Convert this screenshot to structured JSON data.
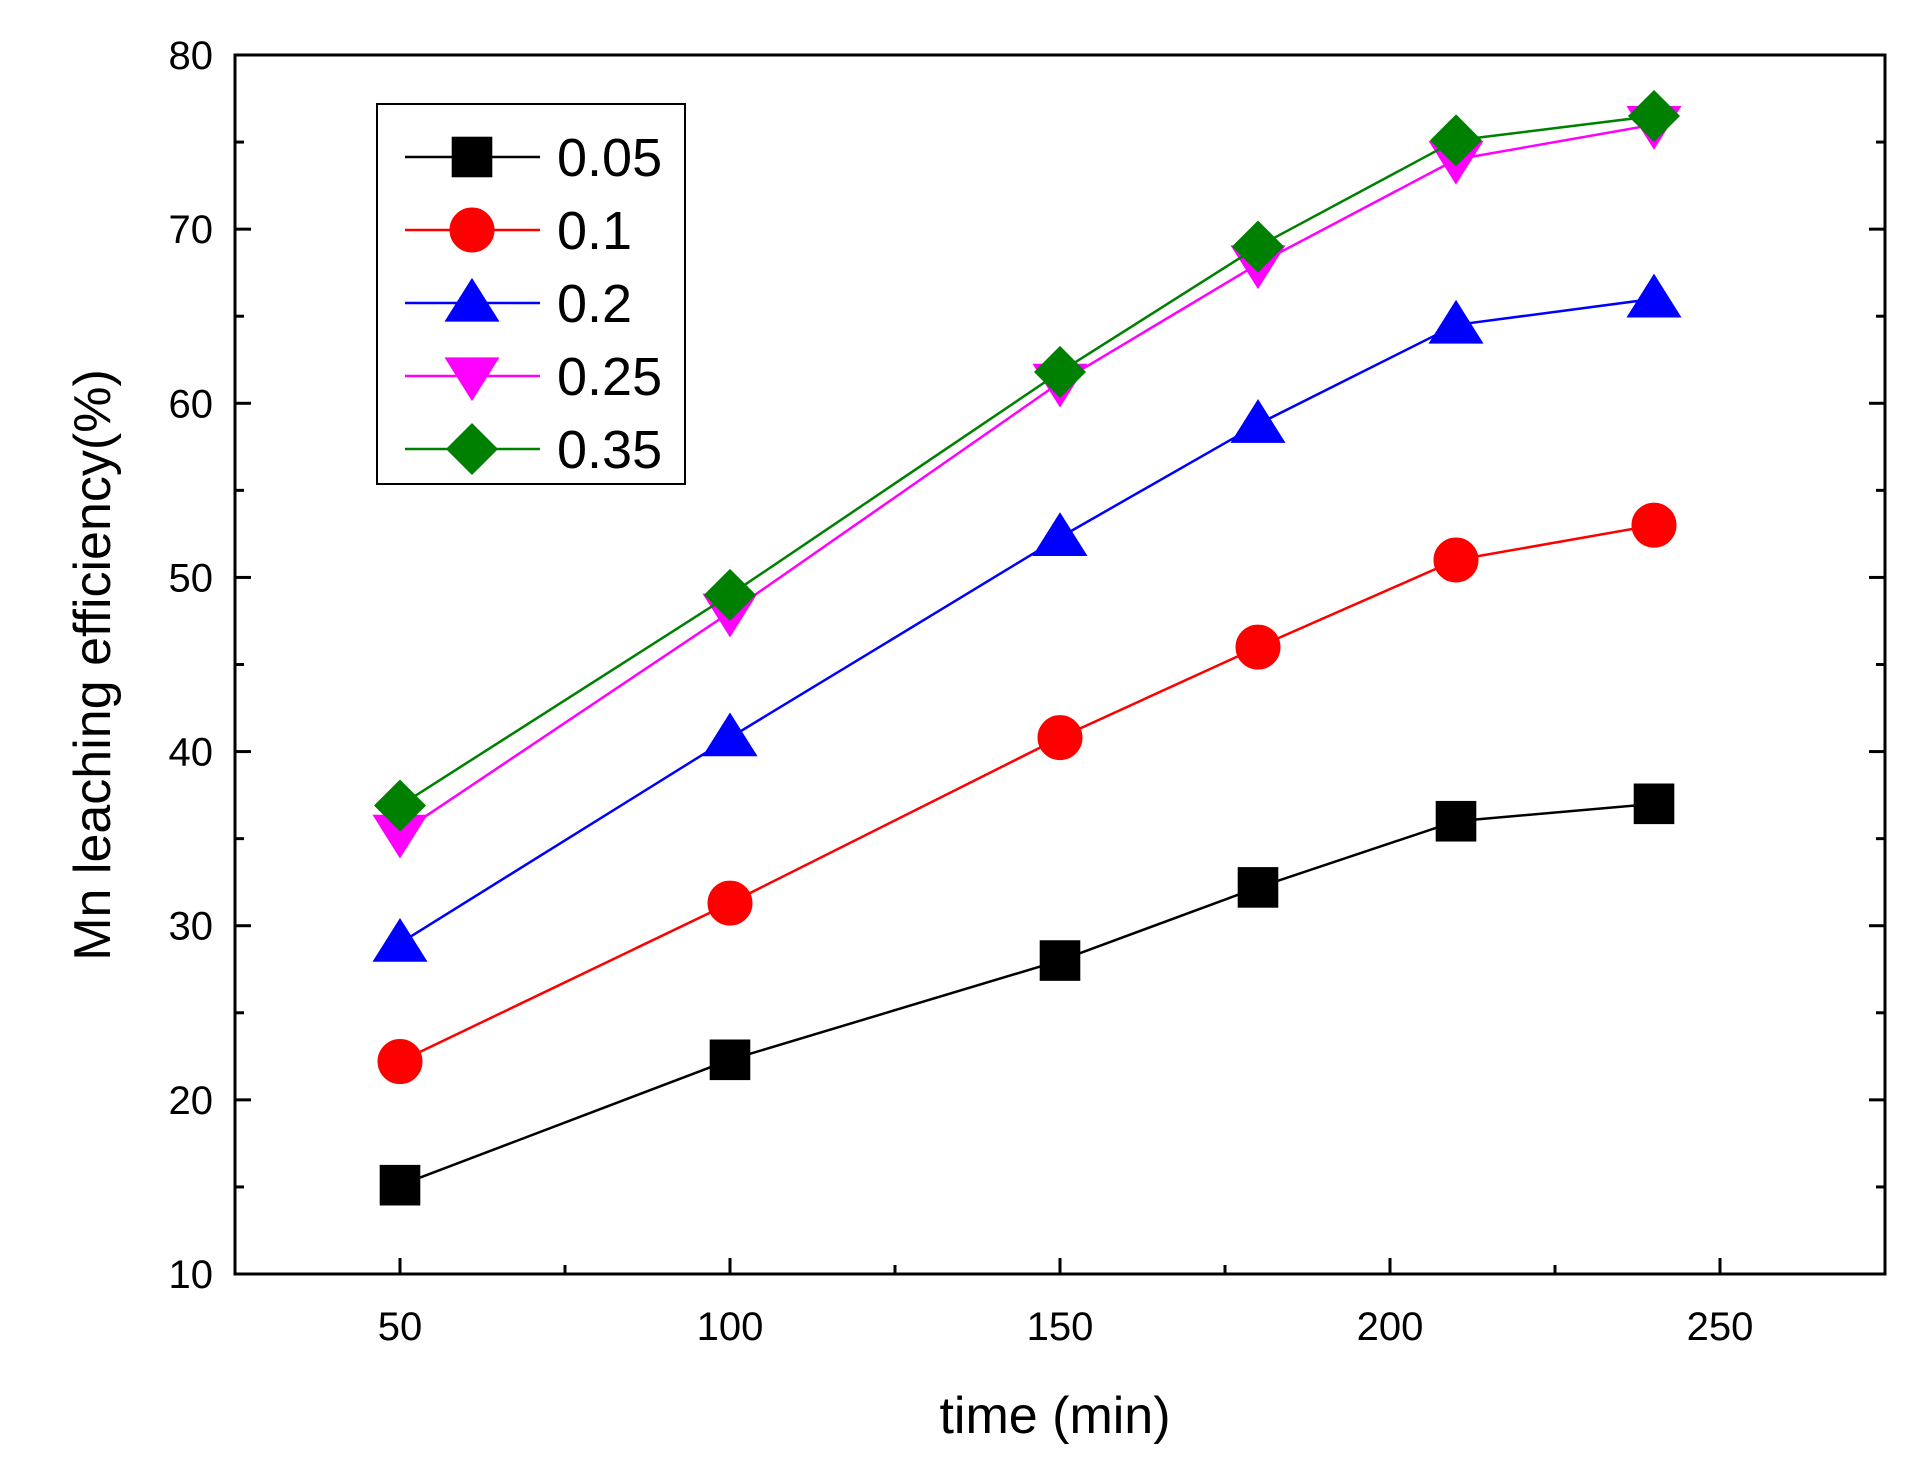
{
  "chart_data": {
    "type": "line",
    "title": "",
    "xlabel": "time (min)",
    "ylabel": "Mn leaching efficiency(%)",
    "xlim": [
      25,
      275
    ],
    "ylim": [
      10,
      80
    ],
    "xticks": [
      50,
      100,
      150,
      200,
      250
    ],
    "yticks": [
      10,
      20,
      30,
      40,
      50,
      60,
      70,
      80
    ],
    "x": [
      50,
      100,
      150,
      180,
      210,
      240
    ],
    "grid": false,
    "legend_position": "top-left",
    "series": [
      {
        "name": "0.05",
        "color": "#000000",
        "marker": "square",
        "values": [
          15.1,
          22.3,
          28.0,
          32.2,
          36.0,
          37.0
        ]
      },
      {
        "name": "0.1",
        "color": "#ff0000",
        "marker": "circle",
        "values": [
          22.2,
          31.3,
          40.8,
          46.0,
          51.0,
          53.0
        ]
      },
      {
        "name": "0.2",
        "color": "#0000ff",
        "marker": "triangle-up",
        "values": [
          29.0,
          40.8,
          52.3,
          58.8,
          64.5,
          66.0
        ]
      },
      {
        "name": "0.25",
        "color": "#ff00ff",
        "marker": "triangle-down",
        "values": [
          35.3,
          48.0,
          61.2,
          68.0,
          74.0,
          76.0
        ]
      },
      {
        "name": "0.35",
        "color": "#008000",
        "marker": "diamond",
        "values": [
          36.9,
          49.0,
          61.8,
          69.0,
          75.1,
          76.5
        ]
      }
    ]
  }
}
